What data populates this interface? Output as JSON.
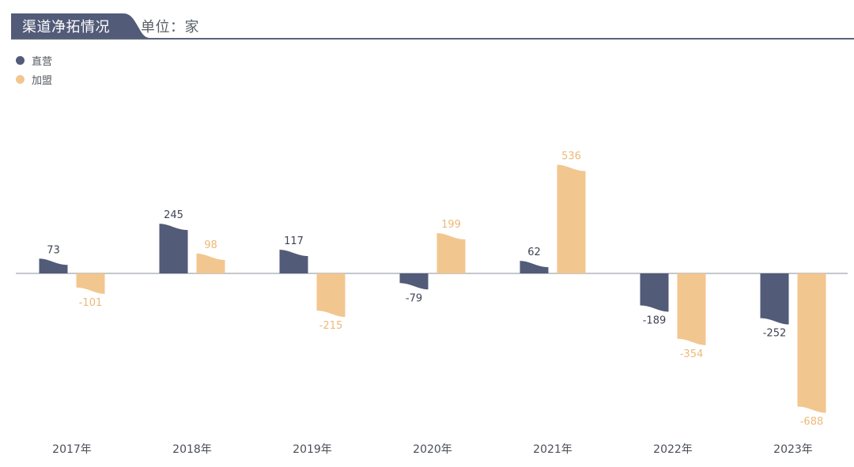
{
  "header": {
    "title": "渠道净拓情况",
    "unit": "单位：家"
  },
  "colors": {
    "header_bg": "#525b78",
    "direct": "#525b78",
    "franchise": "#f2c68f",
    "axis": "#8a8f99",
    "label_direct": "#3e4452",
    "label_franchise": "#ecb978",
    "category_text": "#4a4f57"
  },
  "chart_data": {
    "type": "bar",
    "title": "渠道净拓情况",
    "unit": "单位：家",
    "categories": [
      "2017年",
      "2018年",
      "2019年",
      "2020年",
      "2021年",
      "2022年",
      "2023年"
    ],
    "series": [
      {
        "name": "直营",
        "values": [
          73,
          245,
          117,
          -79,
          62,
          -189,
          -252
        ]
      },
      {
        "name": "加盟",
        "values": [
          -101,
          98,
          -215,
          199,
          536,
          -354,
          -688
        ]
      }
    ],
    "legend_position": "top-left",
    "grid": false
  }
}
